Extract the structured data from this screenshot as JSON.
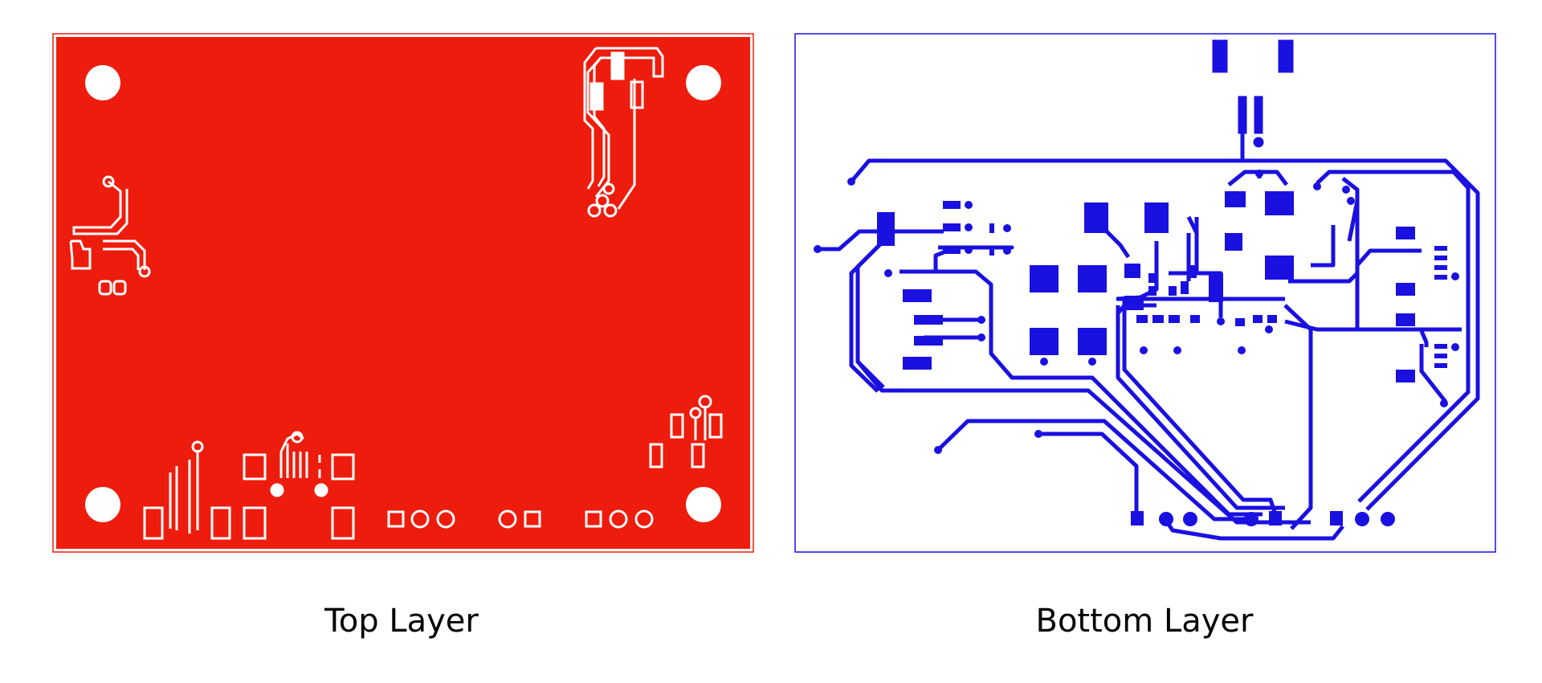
{
  "top_panel": {
    "caption": "Top Layer",
    "colors": {
      "copper": "#ee1c0c",
      "clearance": "#ffffff",
      "outline": "#ee1c0c"
    }
  },
  "bottom_panel": {
    "caption": "Bottom Layer",
    "colors": {
      "copper": "#1a10e0",
      "background": "#ffffff",
      "outline": "#1a10e0"
    }
  }
}
